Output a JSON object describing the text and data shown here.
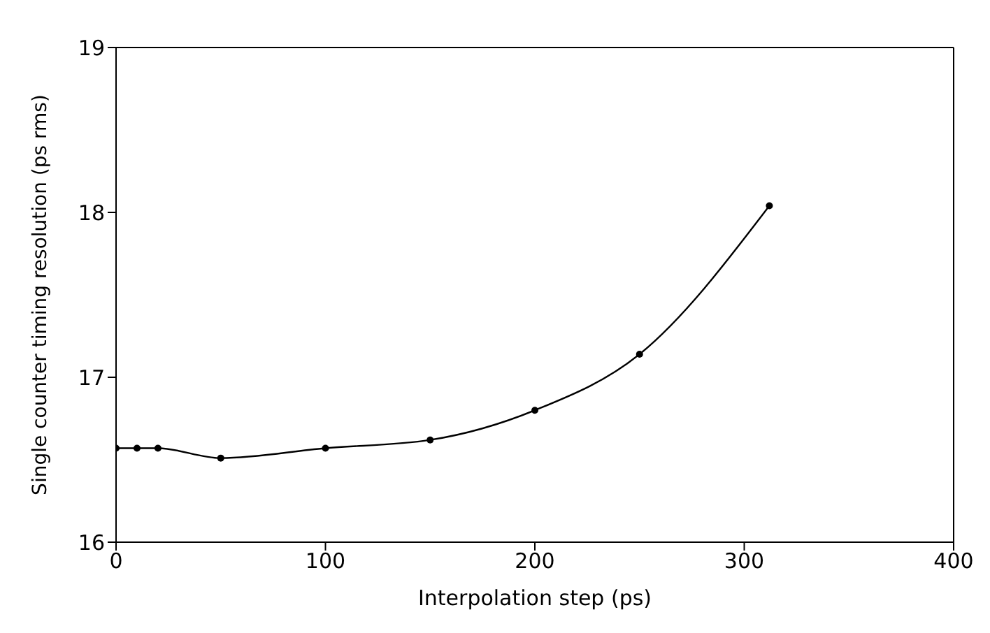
{
  "chart_data": {
    "type": "line",
    "xlabel": "Interpolation step (ps)",
    "ylabel": "Single counter timing resolution (ps rms)",
    "x": [
      0,
      10,
      20,
      50,
      100,
      150,
      200,
      250,
      312
    ],
    "series": [
      {
        "color": "#000000",
        "values": [
          16.57,
          16.57,
          16.57,
          16.51,
          16.57,
          16.62,
          16.8,
          17.14,
          18.04
        ]
      }
    ],
    "xlim": [
      0,
      400
    ],
    "xticks": [
      0,
      100,
      200,
      300,
      400
    ],
    "ylim": [
      16,
      19
    ],
    "yticks": [
      16,
      17,
      18,
      19
    ],
    "grid": false,
    "legend": false,
    "marker": "circle",
    "line_style": "solid"
  }
}
